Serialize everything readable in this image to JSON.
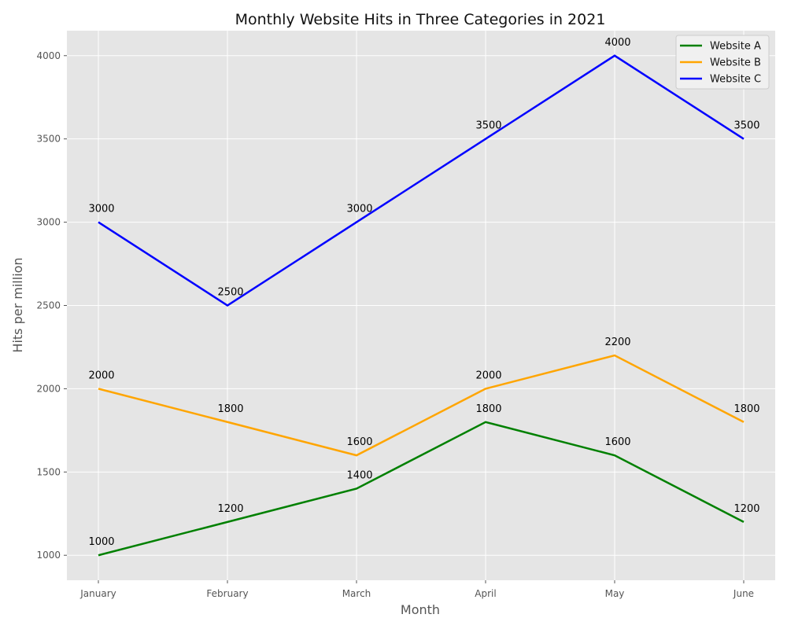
{
  "chart_data": {
    "type": "line",
    "title": "Monthly Website Hits in Three Categories in 2021",
    "xlabel": "Month",
    "ylabel": "Hits per million",
    "categories": [
      "January",
      "February",
      "March",
      "April",
      "May",
      "June"
    ],
    "ylim": [
      850,
      4150
    ],
    "yticks": [
      1000,
      1500,
      2000,
      2500,
      3000,
      3500,
      4000
    ],
    "grid": true,
    "legend_position": "top-right",
    "background_color": "#e5e5e5",
    "grid_color": "#ffffff",
    "series": [
      {
        "name": "Website A",
        "color": "#008000",
        "values": [
          1000,
          1200,
          1400,
          1800,
          1600,
          1200
        ]
      },
      {
        "name": "Website B",
        "color": "#ffa500",
        "values": [
          2000,
          1800,
          1600,
          2000,
          2200,
          1800
        ]
      },
      {
        "name": "Website C",
        "color": "#0000ff",
        "values": [
          3000,
          2500,
          3000,
          3500,
          4000,
          3500
        ]
      }
    ]
  }
}
